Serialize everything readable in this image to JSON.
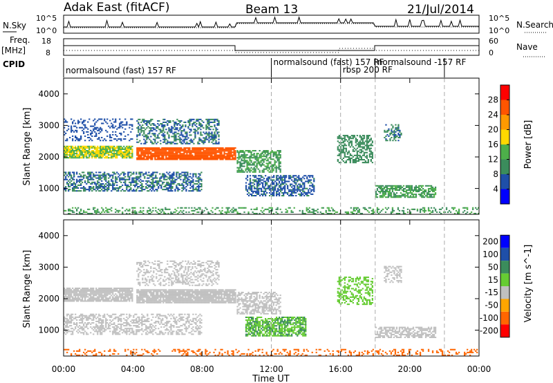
{
  "header": {
    "station": "Adak East (fitACF)",
    "beam": "Beam 13",
    "date": "21/Jul/2014"
  },
  "noise_panel": {
    "left_label": "N.Sky",
    "right_label": "N.Search",
    "left_ticks": [
      "10^5",
      "10^0"
    ],
    "right_ticks": [
      "10^5",
      "10^0"
    ]
  },
  "freq_panel": {
    "left_label_1": "Freq.",
    "left_label_2": "[MHz]",
    "right_label": "Nave",
    "left_ticks": [
      "18",
      "8"
    ],
    "right_ticks": [
      "60",
      "0"
    ]
  },
  "cpid_panel": {
    "label": "CPID",
    "segments": [
      {
        "text": "normalsound (fast) 157 RF",
        "start_hour": 0.0
      },
      {
        "text": "normalsound (fast) 157 RF",
        "start_hour": 12.0
      },
      {
        "text": "rbsp 200 RF",
        "start_hour": 16.0
      },
      {
        "text": "normalsound -157 RF",
        "start_hour": 18.0
      }
    ],
    "boundary_hours": [
      12.0,
      16.0,
      18.0,
      22.0
    ]
  },
  "colors": {
    "power_scale": [
      "#0000ff",
      "#1f4fa8",
      "#3b8c5c",
      "#4daf4a",
      "#ffd800",
      "#ff9900",
      "#ff5500",
      "#ff0000"
    ],
    "velocity_scale": [
      "#0000ff",
      "#1f4fa8",
      "#3b8c5c",
      "#66cc33",
      "#c0c0c0",
      "#ffa500",
      "#ff6600",
      "#ff0000"
    ],
    "ground_scatter": "#c0c0c0"
  },
  "chart_data": [
    {
      "type": "heatmap",
      "title": "",
      "panel": "power",
      "xlabel": "Time UT",
      "ylabel": "Slant Range [km]",
      "xlim": [
        0,
        24
      ],
      "ylim": [
        180,
        4500
      ],
      "x_ticks": [
        "00:00",
        "04:00",
        "08:00",
        "12:00",
        "16:00",
        "20:00",
        "00:00"
      ],
      "y_ticks": [
        "1000",
        "2000",
        "3000",
        "4000"
      ],
      "colorbar": {
        "label": "Power [dB]",
        "ticks": [
          "4",
          "8",
          "12",
          "16",
          "20",
          "24",
          "28"
        ],
        "range": [
          0,
          30
        ]
      },
      "regions": [
        {
          "t0": 0.0,
          "t1": 4.0,
          "r0": 1950,
          "r1": 2350,
          "level": 16,
          "density": 0.85
        },
        {
          "t0": 4.2,
          "t1": 9.9,
          "r0": 1900,
          "r1": 2300,
          "level": 26,
          "density": 0.9
        },
        {
          "t0": 4.2,
          "t1": 9.0,
          "r0": 2400,
          "r1": 3200,
          "level": 8,
          "density": 0.45
        },
        {
          "t0": 0.0,
          "t1": 4.0,
          "r0": 2500,
          "r1": 3200,
          "level": 6,
          "density": 0.25
        },
        {
          "t0": 0.0,
          "t1": 8.0,
          "r0": 900,
          "r1": 1500,
          "level": 8,
          "density": 0.5
        },
        {
          "t0": 10.0,
          "t1": 12.5,
          "r0": 1500,
          "r1": 2200,
          "level": 12,
          "density": 0.6
        },
        {
          "t0": 10.5,
          "t1": 14.5,
          "r0": 750,
          "r1": 1400,
          "level": 7,
          "density": 0.55
        },
        {
          "t0": 15.8,
          "t1": 17.8,
          "r0": 1800,
          "r1": 2700,
          "level": 10,
          "density": 0.55
        },
        {
          "t0": 18.0,
          "t1": 21.5,
          "r0": 700,
          "r1": 1100,
          "level": 12,
          "density": 0.65
        },
        {
          "t0": 18.5,
          "t1": 19.5,
          "r0": 2500,
          "r1": 3000,
          "level": 9,
          "density": 0.4
        },
        {
          "t0": 0.0,
          "t1": 24.0,
          "r0": 180,
          "r1": 400,
          "level": 12,
          "density": 0.3
        }
      ]
    },
    {
      "type": "heatmap",
      "title": "",
      "panel": "velocity",
      "xlabel": "Time UT",
      "ylabel": "Slant Range [km]",
      "xlim": [
        0,
        24
      ],
      "ylim": [
        180,
        4500
      ],
      "x_ticks": [
        "00:00",
        "04:00",
        "08:00",
        "12:00",
        "16:00",
        "20:00",
        "00:00"
      ],
      "y_ticks": [
        "1000",
        "2000",
        "3000",
        "4000"
      ],
      "colorbar": {
        "label": "Velocity [m s^-1]",
        "ticks": [
          "200",
          "100",
          "50",
          "15",
          "-15",
          "-50",
          "-100",
          "-200"
        ],
        "range": [
          -250,
          250
        ]
      },
      "regions": [
        {
          "t0": 0.0,
          "t1": 4.0,
          "r0": 1900,
          "r1": 2350,
          "level": 0,
          "density": 0.85
        },
        {
          "t0": 4.2,
          "t1": 9.9,
          "r0": 1850,
          "r1": 2300,
          "level": 0,
          "density": 0.9
        },
        {
          "t0": 4.2,
          "t1": 9.0,
          "r0": 2400,
          "r1": 3200,
          "level": 0,
          "density": 0.35
        },
        {
          "t0": 0.0,
          "t1": 8.0,
          "r0": 850,
          "r1": 1500,
          "level": 0,
          "density": 0.45
        },
        {
          "t0": 10.0,
          "t1": 12.5,
          "r0": 1500,
          "r1": 2200,
          "level": 0,
          "density": 0.55
        },
        {
          "t0": 10.5,
          "t1": 14.0,
          "r0": 800,
          "r1": 1400,
          "level": 30,
          "density": 0.7
        },
        {
          "t0": 15.8,
          "t1": 17.8,
          "r0": 1800,
          "r1": 2700,
          "level": 25,
          "density": 0.4
        },
        {
          "t0": 18.0,
          "t1": 21.5,
          "r0": 750,
          "r1": 1100,
          "level": 0,
          "density": 0.65
        },
        {
          "t0": 18.5,
          "t1": 19.5,
          "r0": 2500,
          "r1": 3000,
          "level": 0,
          "density": 0.4
        },
        {
          "t0": 0.0,
          "t1": 24.0,
          "r0": 180,
          "r1": 400,
          "level": -40,
          "density": 0.25
        }
      ]
    }
  ]
}
